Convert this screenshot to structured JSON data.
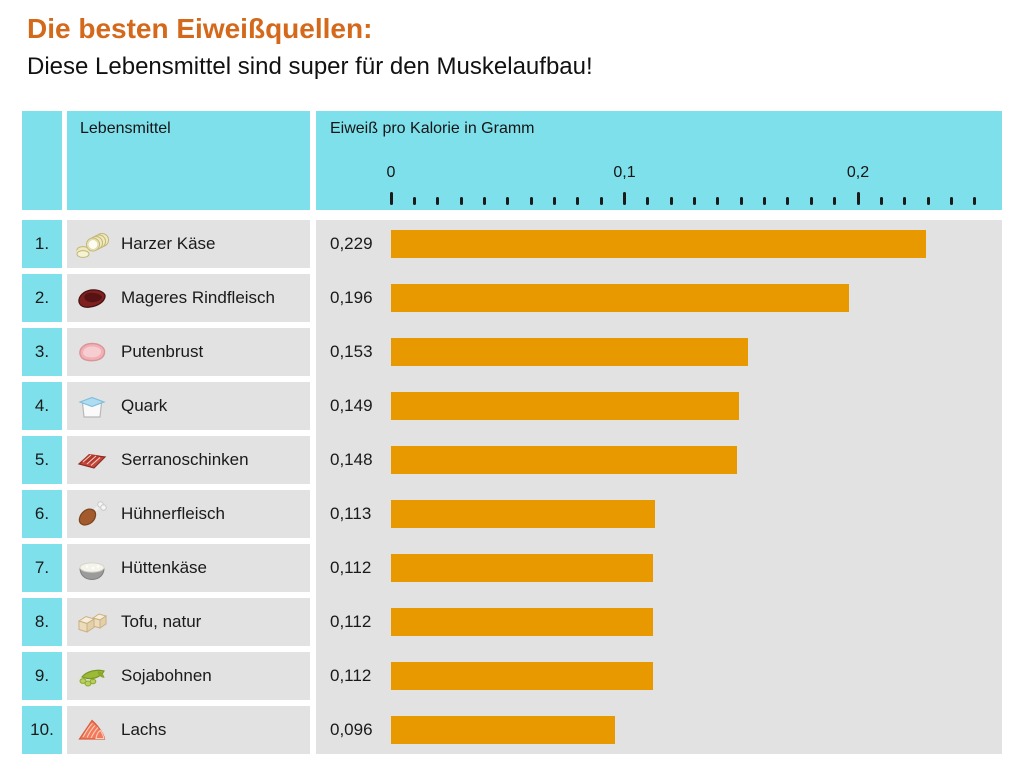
{
  "page": {
    "title": "Die besten Eiweißquellen:",
    "subtitle": "Diese Lebensmittel sind super für den Muskelaufbau!"
  },
  "table": {
    "food_header": "Lebensmittel",
    "value_header": "Eiweiß pro Kalorie in Gramm"
  },
  "axis": {
    "min": 0,
    "max": 0.25,
    "minor_step": 0.01,
    "major_step": 0.1,
    "tick_labels": [
      {
        "text": "0",
        "value": 0
      },
      {
        "text": "0,1",
        "value": 0.1
      },
      {
        "text": "0,2",
        "value": 0.2
      }
    ]
  },
  "rows": [
    {
      "rank_label": "1.",
      "label": "Harzer Käse",
      "value": 0.229,
      "value_label": "0,229",
      "icon": "cheese-rolls-icon"
    },
    {
      "rank_label": "2.",
      "label": "Mageres Rindfleisch",
      "value": 0.196,
      "value_label": "0,196",
      "icon": "beef-icon"
    },
    {
      "rank_label": "3.",
      "label": "Putenbrust",
      "value": 0.153,
      "value_label": "0,153",
      "icon": "turkey-breast-icon"
    },
    {
      "rank_label": "4.",
      "label": "Quark",
      "value": 0.149,
      "value_label": "0,149",
      "icon": "quark-tub-icon"
    },
    {
      "rank_label": "5.",
      "label": "Serranoschinken",
      "value": 0.148,
      "value_label": "0,148",
      "icon": "serrano-ham-icon"
    },
    {
      "rank_label": "6.",
      "label": "Hühnerfleisch",
      "value": 0.113,
      "value_label": "0,113",
      "icon": "chicken-drumstick-icon"
    },
    {
      "rank_label": "7.",
      "label": "Hüttenkäse",
      "value": 0.112,
      "value_label": "0,112",
      "icon": "cottage-cheese-bowl-icon"
    },
    {
      "rank_label": "8.",
      "label": "Tofu, natur",
      "value": 0.112,
      "value_label": "0,112",
      "icon": "tofu-cubes-icon"
    },
    {
      "rank_label": "9.",
      "label": "Sojabohnen",
      "value": 0.112,
      "value_label": "0,112",
      "icon": "soybeans-icon"
    },
    {
      "rank_label": "10.",
      "label": "Lachs",
      "value": 0.096,
      "value_label": "0,096",
      "icon": "salmon-fillet-icon"
    }
  ],
  "colors": {
    "title_accent": "#d4691b",
    "bar": "#e89900",
    "header_bg": "#7ee0eb",
    "row_bg": "#e2e2e2"
  },
  "chart_data": {
    "type": "bar",
    "orientation": "horizontal",
    "title": "Die besten Eiweißquellen:",
    "subtitle": "Diese Lebensmittel sind super für den Muskelaufbau!",
    "xlabel": "Eiweiß pro Kalorie in Gramm",
    "ylabel": "Lebensmittel",
    "xlim": [
      0,
      0.25
    ],
    "grid": false,
    "legend": false,
    "value_format": "comma-decimal",
    "categories": [
      "Harzer Käse",
      "Mageres Rindfleisch",
      "Putenbrust",
      "Quark",
      "Serranoschinken",
      "Hühnerfleisch",
      "Hüttenkäse",
      "Tofu, natur",
      "Sojabohnen",
      "Lachs"
    ],
    "values": [
      0.229,
      0.196,
      0.153,
      0.149,
      0.148,
      0.113,
      0.112,
      0.112,
      0.112,
      0.096
    ]
  }
}
